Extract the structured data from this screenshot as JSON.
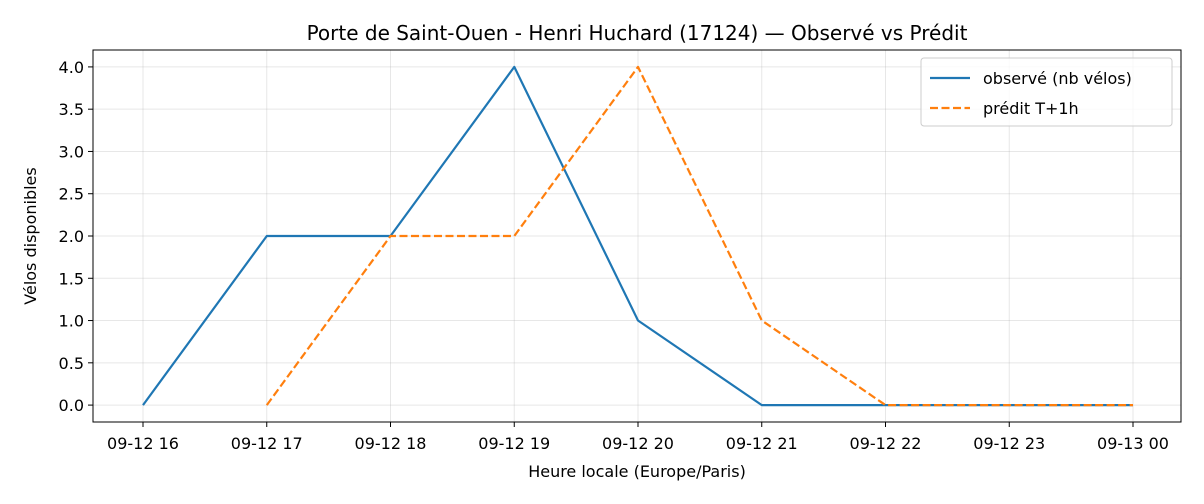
{
  "chart_data": {
    "type": "line",
    "title": "Porte de Saint-Ouen - Henri Huchard (17124) — Observé vs Prédit",
    "xlabel": "Heure locale (Europe/Paris)",
    "ylabel": "Vélos disponibles",
    "x": [
      "09-12 16",
      "09-12 17",
      "09-12 18",
      "09-12 19",
      "09-12 20",
      "09-12 21",
      "09-12 22",
      "09-12 23",
      "09-13 00"
    ],
    "x_ticks": [
      "09-12 16",
      "09-12 17",
      "09-12 18",
      "09-12 19",
      "09-12 20",
      "09-12 21",
      "09-12 22",
      "09-12 23",
      "09-13 00"
    ],
    "y_ticks": [
      "0.0",
      "0.5",
      "1.0",
      "1.5",
      "2.0",
      "2.5",
      "3.0",
      "3.5",
      "4.0"
    ],
    "ylim": [
      -0.2,
      4.2
    ],
    "grid": true,
    "legend_position": "top-right",
    "series": [
      {
        "name": "observé (nb vélos)",
        "color": "#1f77b4",
        "style": "solid",
        "points": [
          {
            "x": "09-12 16",
            "y": 0
          },
          {
            "x": "09-12 17",
            "y": 2
          },
          {
            "x": "09-12 18",
            "y": 2
          },
          {
            "x": "09-12 19",
            "y": 4
          },
          {
            "x": "09-12 20",
            "y": 1
          },
          {
            "x": "09-12 21",
            "y": 0
          },
          {
            "x": "09-12 22",
            "y": 0
          },
          {
            "x": "09-12 23",
            "y": 0
          },
          {
            "x": "09-13 00",
            "y": 0
          }
        ]
      },
      {
        "name": "prédit T+1h",
        "color": "#ff7f0e",
        "style": "dashed",
        "points": [
          {
            "x": "09-12 17",
            "y": 0
          },
          {
            "x": "09-12 18",
            "y": 2
          },
          {
            "x": "09-12 19",
            "y": 2
          },
          {
            "x": "09-12 20",
            "y": 4
          },
          {
            "x": "09-12 21",
            "y": 1
          },
          {
            "x": "09-12 22",
            "y": 0
          },
          {
            "x": "09-12 23",
            "y": 0
          },
          {
            "x": "09-13 00",
            "y": 0
          }
        ]
      }
    ]
  }
}
